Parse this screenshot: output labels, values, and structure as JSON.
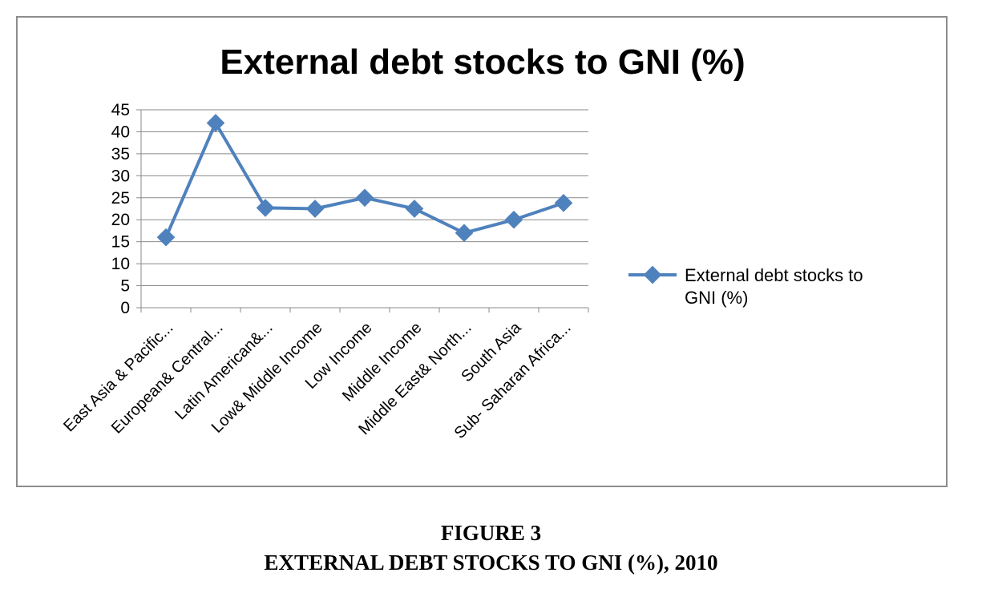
{
  "chart_data": {
    "type": "line",
    "title": "External debt stocks to GNI (%)",
    "categories": [
      "East Asia & Pacific...",
      "European& Central...",
      "Latin American&...",
      "Low& Middle Income",
      "Low Income",
      "Middle Income",
      "Middle East& North...",
      "South Asia",
      "Sub- Saharan Africa..."
    ],
    "series": [
      {
        "name": "External debt stocks to GNI (%)",
        "values": [
          16,
          42,
          22.7,
          22.5,
          25,
          22.5,
          17,
          20,
          23.8
        ],
        "color": "#4f81bd"
      }
    ],
    "ylim": [
      0,
      45
    ],
    "yticks": [
      0,
      5,
      10,
      15,
      20,
      25,
      30,
      35,
      40,
      45
    ],
    "grid": true,
    "legend": "right"
  },
  "caption": {
    "figure_label": "FIGURE 3",
    "figure_title": "EXTERNAL DEBT STOCKS TO GNI (%), 2010"
  }
}
